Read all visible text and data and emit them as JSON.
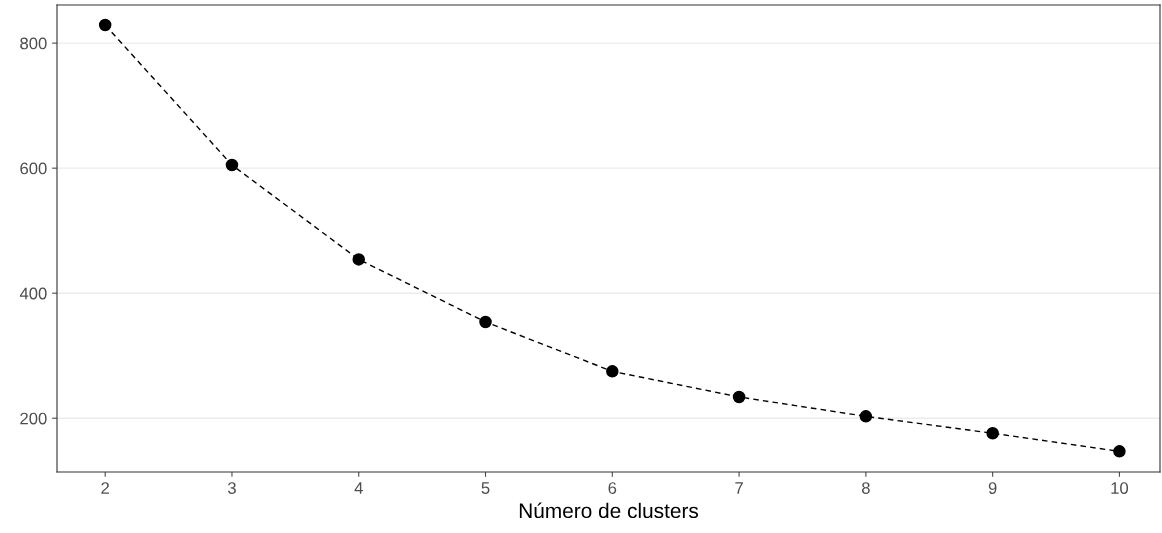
{
  "chart_data": {
    "type": "line",
    "xlabel": "Número de clusters",
    "x": [
      2,
      3,
      4,
      5,
      6,
      7,
      8,
      9,
      10
    ],
    "series": [
      {
        "color": "#000000",
        "values": [
          829,
          605,
          454,
          354,
          275,
          234,
          203,
          176,
          147
        ]
      }
    ],
    "xlim": [
      1.62,
      10.32
    ],
    "xticks": [
      2,
      3,
      4,
      5,
      6,
      7,
      8,
      9,
      10
    ],
    "ylim": [
      114,
      861
    ],
    "yticks": [
      200,
      400,
      600,
      800
    ],
    "grid": "y",
    "marker": "circle",
    "line_style": "dashed",
    "legend": false
  }
}
